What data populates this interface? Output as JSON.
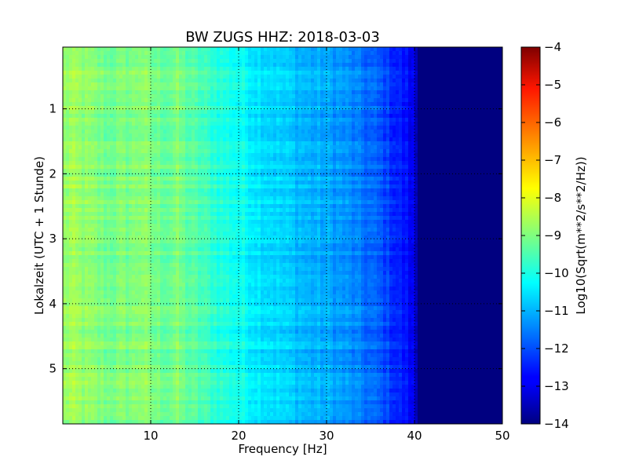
{
  "chart_data": {
    "type": "heatmap",
    "title": "BW ZUGS HHZ: 2018-03-03",
    "xlabel": "Frequency [Hz]",
    "ylabel": "Lokalzeit (UTC + 1 Stunde)",
    "xlim": [
      0,
      50
    ],
    "ylim": [
      5.85,
      0.05
    ],
    "y_axis_inverted": true,
    "xticks": [
      10,
      20,
      30,
      40,
      50
    ],
    "yticks": [
      1,
      2,
      3,
      4,
      5
    ],
    "grid": true,
    "grid_style": "dotted",
    "colormap": "jet",
    "colorbar": {
      "label": "Log10(Sqrt(m**2/s**2/Hz))",
      "range": [
        -14,
        -4
      ],
      "ticks": [
        -4,
        -5,
        -6,
        -7,
        -8,
        -9,
        -10,
        -11,
        -12,
        -13,
        -14
      ]
    },
    "frequency_profile_hz": [
      0,
      1,
      3,
      5,
      8,
      9,
      10,
      12,
      13,
      14,
      16,
      18,
      20,
      22,
      24,
      26,
      28,
      30,
      32,
      34,
      36,
      38,
      39,
      40,
      40.5,
      50
    ],
    "frequency_profile_log10": [
      -8.8,
      -8.7,
      -8.9,
      -9.1,
      -9.0,
      -8.8,
      -9.1,
      -9.2,
      -9.0,
      -9.3,
      -9.6,
      -9.9,
      -10.1,
      -10.4,
      -10.6,
      -10.8,
      -11.0,
      -11.1,
      -11.3,
      -11.6,
      -11.9,
      -12.4,
      -12.6,
      -13.0,
      -14.0,
      -14.0
    ]
  }
}
